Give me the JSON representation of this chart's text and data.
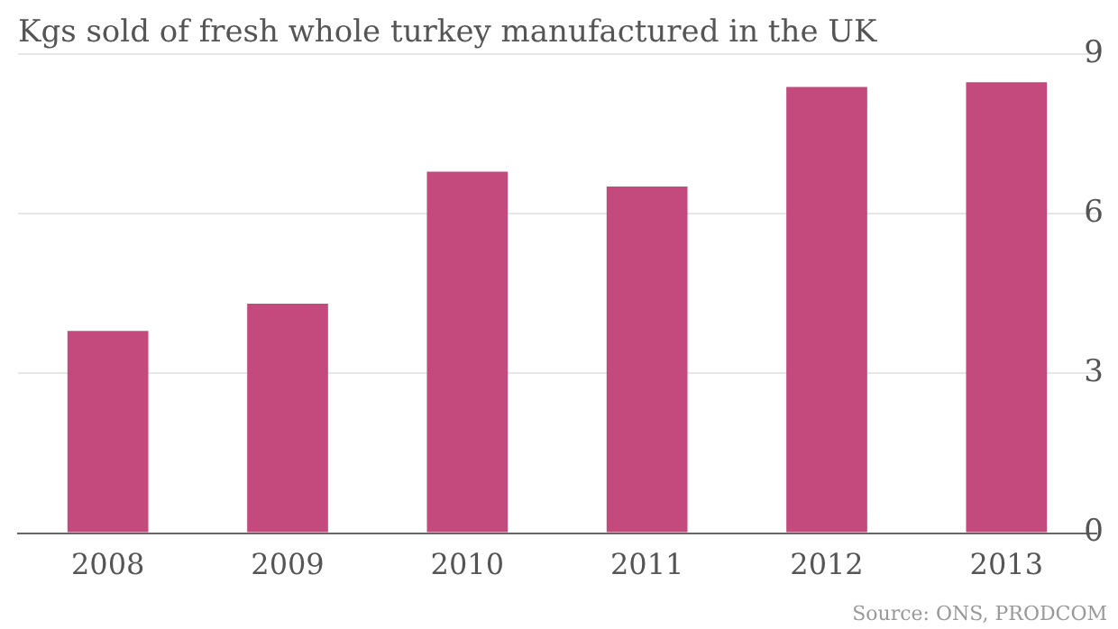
{
  "chart_data": {
    "type": "bar",
    "title": "Kgs sold of fresh whole turkey manufactured in the UK",
    "categories": [
      "2008",
      "2009",
      "2010",
      "2011",
      "2012",
      "2013"
    ],
    "values": [
      3.8,
      4.31,
      6.79,
      6.51,
      8.38,
      8.47
    ],
    "color": "#c44a7e",
    "ylim": [
      0,
      9
    ],
    "yticks": [
      0,
      3,
      6,
      9
    ],
    "grid": "y",
    "annotations": [
      "Source: ONS, PRODCOM"
    ]
  }
}
